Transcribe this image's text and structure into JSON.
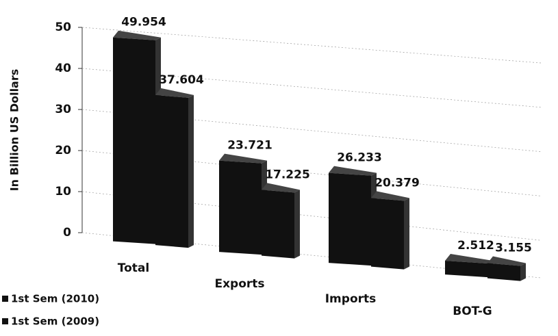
{
  "chart_data": {
    "type": "bar3d",
    "y_axis_label": "In Billion US Dollars",
    "categories": [
      "Total",
      "Exports",
      "Imports",
      "BOT-G"
    ],
    "series": [
      {
        "name": "1st Sem (2010)",
        "color": "#111111",
        "values": [
          49.954,
          23.721,
          26.233,
          2.512
        ]
      },
      {
        "name": "1st Sem (2009)",
        "color": "#111111",
        "values": [
          37.604,
          17.225,
          20.379,
          3.155
        ]
      }
    ],
    "ylim": [
      0,
      50
    ],
    "yticks": [
      0,
      10,
      20,
      30,
      40,
      50
    ],
    "grid": true,
    "legend": "bottom-left"
  }
}
